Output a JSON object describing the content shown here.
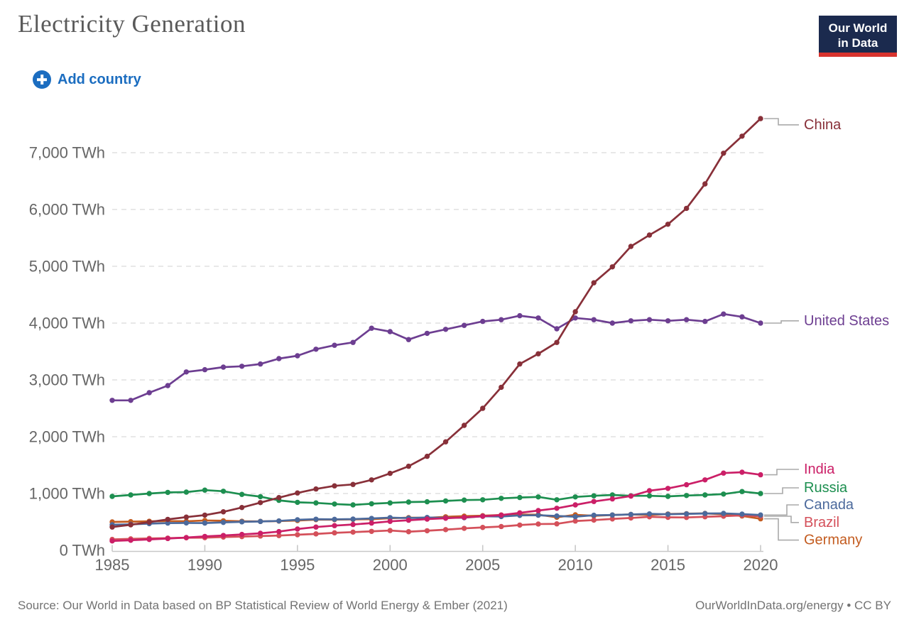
{
  "header": {
    "title": "Electricity Generation",
    "logo_line1": "Our World",
    "logo_line2": "in Data"
  },
  "controls": {
    "add_country_label": "Add country"
  },
  "footer": {
    "source": "Source: Our World in Data based on BP Statistical Review of World Energy & Ember (2021)",
    "link": "OurWorldInData.org/energy • CC BY"
  },
  "colors": {
    "accent_blue": "#1b6dc0",
    "logo_navy": "#1b2a4e",
    "logo_red": "#d8332e",
    "axis_text": "#666666",
    "gridline": "#d9d9d9",
    "axis_line": "#c8c8c8",
    "connector": "#aaaaaa"
  },
  "chart_data": {
    "type": "line",
    "title": "Electricity Generation",
    "unit": "TWh",
    "grid": true,
    "legend_position": "labels-right-of-lines",
    "ylim": [
      0,
      7800
    ],
    "x": [
      1985,
      1986,
      1987,
      1988,
      1989,
      1990,
      1991,
      1992,
      1993,
      1994,
      1995,
      1996,
      1997,
      1998,
      1999,
      2000,
      2001,
      2002,
      2003,
      2004,
      2005,
      2006,
      2007,
      2008,
      2009,
      2010,
      2011,
      2012,
      2013,
      2014,
      2015,
      2016,
      2017,
      2018,
      2019,
      2020
    ],
    "x_ticks": [
      1985,
      1990,
      1995,
      2000,
      2005,
      2010,
      2015,
      2020
    ],
    "y_ticks": [
      {
        "value": 0,
        "label": "0 TWh"
      },
      {
        "value": 1000,
        "label": "1,000 TWh"
      },
      {
        "value": 2000,
        "label": "2,000 TWh"
      },
      {
        "value": 3000,
        "label": "3,000 TWh"
      },
      {
        "value": 4000,
        "label": "4,000 TWh"
      },
      {
        "value": 5000,
        "label": "5,000 TWh"
      },
      {
        "value": 6000,
        "label": "6,000 TWh"
      },
      {
        "value": 7000,
        "label": "7,000 TWh"
      }
    ],
    "series": [
      {
        "name": "Germany",
        "color": "#c35c20",
        "label_y": 180,
        "values": [
          500,
          505,
          512,
          515,
          512,
          526,
          520,
          512,
          510,
          515,
          525,
          540,
          540,
          545,
          548,
          565,
          575,
          572,
          590,
          602,
          610,
          622,
          630,
          627,
          582,
          625,
          608,
          622,
          632,
          622,
          640,
          645,
          650,
          635,
          605,
          555
        ]
      },
      {
        "name": "Brazil",
        "color": "#d4505a",
        "label_y": 490,
        "values": [
          193,
          202,
          210,
          215,
          222,
          223,
          234,
          242,
          252,
          260,
          275,
          289,
          308,
          321,
          334,
          349,
          328,
          345,
          364,
          387,
          403,
          419,
          445,
          463,
          466,
          516,
          532,
          553,
          570,
          590,
          581,
          579,
          591,
          601,
          615,
          600
        ]
      },
      {
        "name": "Canada",
        "color": "#4c6a9c",
        "label_y": 800,
        "values": [
          450,
          458,
          470,
          480,
          482,
          480,
          492,
          502,
          508,
          518,
          538,
          548,
          546,
          550,
          562,
          576,
          568,
          578,
          570,
          575,
          600,
          595,
          615,
          618,
          605,
          592,
          618,
          622,
          632,
          642,
          635,
          642,
          648,
          650,
          638,
          622
        ]
      },
      {
        "name": "Russia",
        "color": "#1d8f50",
        "label_y": 1100,
        "values": [
          950,
          975,
          1000,
          1020,
          1025,
          1060,
          1040,
          985,
          945,
          880,
          845,
          835,
          815,
          800,
          820,
          835,
          850,
          855,
          870,
          885,
          890,
          915,
          930,
          940,
          890,
          940,
          960,
          975,
          960,
          960,
          950,
          965,
          975,
          990,
          1035,
          1000
        ]
      },
      {
        "name": "India",
        "color": "#cb1f67",
        "label_y": 1425,
        "values": [
          165,
          178,
          192,
          208,
          225,
          245,
          262,
          280,
          300,
          330,
          375,
          410,
          435,
          455,
          480,
          510,
          530,
          550,
          565,
          580,
          600,
          620,
          660,
          700,
          740,
          800,
          860,
          905,
          955,
          1050,
          1090,
          1155,
          1240,
          1360,
          1375,
          1330
        ]
      },
      {
        "name": "United States",
        "color": "#6d3e91",
        "label_y": 4040,
        "values": [
          2640,
          2640,
          2775,
          2900,
          3140,
          3180,
          3225,
          3240,
          3280,
          3375,
          3425,
          3540,
          3610,
          3660,
          3910,
          3850,
          3710,
          3820,
          3890,
          3960,
          4030,
          4060,
          4130,
          4090,
          3900,
          4090,
          4060,
          4000,
          4040,
          4060,
          4040,
          4060,
          4030,
          4160,
          4110,
          4000
        ]
      },
      {
        "name": "China",
        "color": "#883039",
        "label_y": 7490,
        "values": [
          410,
          450,
          497,
          545,
          585,
          620,
          678,
          754,
          840,
          928,
          1010,
          1080,
          1135,
          1160,
          1240,
          1355,
          1480,
          1655,
          1910,
          2200,
          2500,
          2870,
          3280,
          3460,
          3660,
          4200,
          4710,
          4990,
          5350,
          5550,
          5740,
          6020,
          6450,
          6990,
          7290,
          7600
        ]
      }
    ]
  }
}
